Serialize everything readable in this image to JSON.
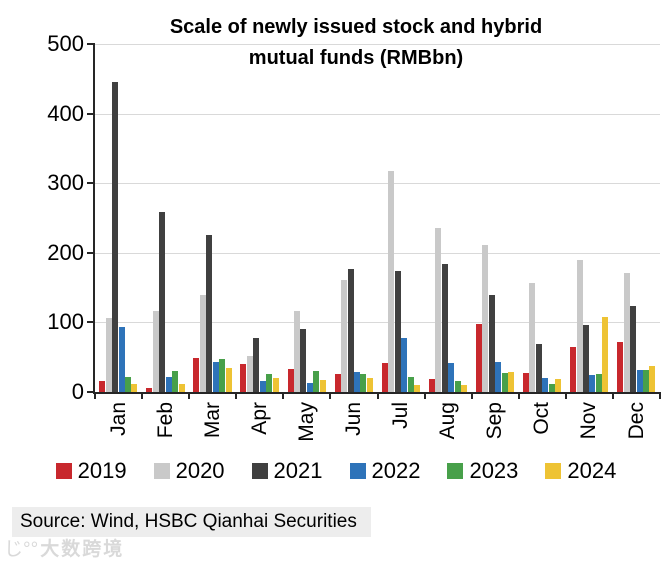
{
  "title": {
    "line1": "Scale of newly issued stock and hybrid",
    "line2": "mutual funds (RMBbn)"
  },
  "chart_data": {
    "type": "bar",
    "title": "Scale of newly issued stock and hybrid mutual funds (RMBbn)",
    "categories": [
      "Jan",
      "Feb",
      "Mar",
      "Apr",
      "May",
      "Jun",
      "Jul",
      "Aug",
      "Sep",
      "Oct",
      "Nov",
      "Dec"
    ],
    "series": [
      {
        "name": "2019",
        "color": "#c8282d",
        "values": [
          16,
          6,
          49,
          40,
          33,
          26,
          41,
          18,
          97,
          27,
          64,
          72
        ]
      },
      {
        "name": "2020",
        "color": "#c9c9c9",
        "values": [
          107,
          117,
          140,
          52,
          117,
          161,
          317,
          235,
          211,
          157,
          190,
          171
        ]
      },
      {
        "name": "2021",
        "color": "#404040",
        "values": [
          445,
          259,
          225,
          77,
          91,
          177,
          174,
          184,
          140,
          69,
          96,
          123
        ]
      },
      {
        "name": "2022",
        "color": "#2e73b9",
        "values": [
          93,
          21,
          43,
          16,
          13,
          29,
          77,
          41,
          43,
          20,
          24,
          31
        ]
      },
      {
        "name": "2023",
        "color": "#48a04a",
        "values": [
          21,
          30,
          47,
          26,
          30,
          26,
          21,
          16,
          27,
          11,
          26,
          31
        ]
      },
      {
        "name": "2024",
        "color": "#eec334",
        "values": [
          11,
          11,
          34,
          20,
          17,
          20,
          10,
          10,
          29,
          19,
          108,
          37
        ]
      }
    ],
    "xlabel": "",
    "ylabel": "",
    "ylim": [
      0,
      500
    ],
    "yticks": [
      0,
      100,
      200,
      300,
      400,
      500
    ],
    "grid": true,
    "legend_position": "bottom",
    "axis_color": "#262626",
    "gridline_color": "#d9d9d9"
  },
  "source": {
    "text": "Source: Wind, HSBC Qianhai Securities"
  },
  "watermark": {
    "logo": "じ°°",
    "text": "大数跨境"
  }
}
